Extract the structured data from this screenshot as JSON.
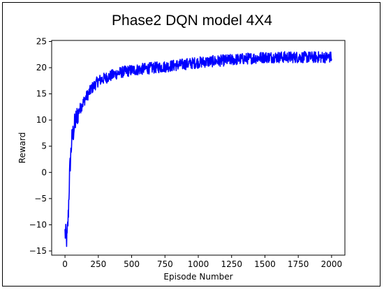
{
  "chart_data": {
    "type": "line",
    "title": "Phase2 DQN model 4X4",
    "xlabel": "Episode Number",
    "ylabel": "Reward",
    "xlim": [
      -100,
      2100
    ],
    "ylim": [
      -15.8,
      25.2
    ],
    "xticks": [
      0,
      250,
      500,
      750,
      1000,
      1250,
      1500,
      1750,
      2000
    ],
    "yticks": [
      -15,
      -10,
      -5,
      0,
      5,
      10,
      15,
      20,
      25
    ],
    "xtick_labels": [
      "0",
      "250",
      "500",
      "750",
      "1000",
      "1250",
      "1500",
      "1750",
      "2000"
    ],
    "ytick_labels": [
      "−15",
      "−10",
      "−5",
      "0",
      "5",
      "10",
      "15",
      "20",
      "25"
    ],
    "grid": false,
    "series": [
      {
        "color": "#0000ff",
        "x": [
          0,
          15,
          25,
          35,
          50,
          75,
          100,
          150,
          200,
          250,
          300,
          400,
          500,
          600,
          750,
          1000,
          1250,
          1500,
          1750,
          2000
        ],
        "values": [
          -11.5,
          -13,
          -8,
          0,
          6,
          9.5,
          11.5,
          14,
          16,
          17.5,
          18,
          19,
          19.5,
          19.8,
          20.2,
          21,
          21.5,
          22,
          22,
          22
        ]
      }
    ]
  }
}
